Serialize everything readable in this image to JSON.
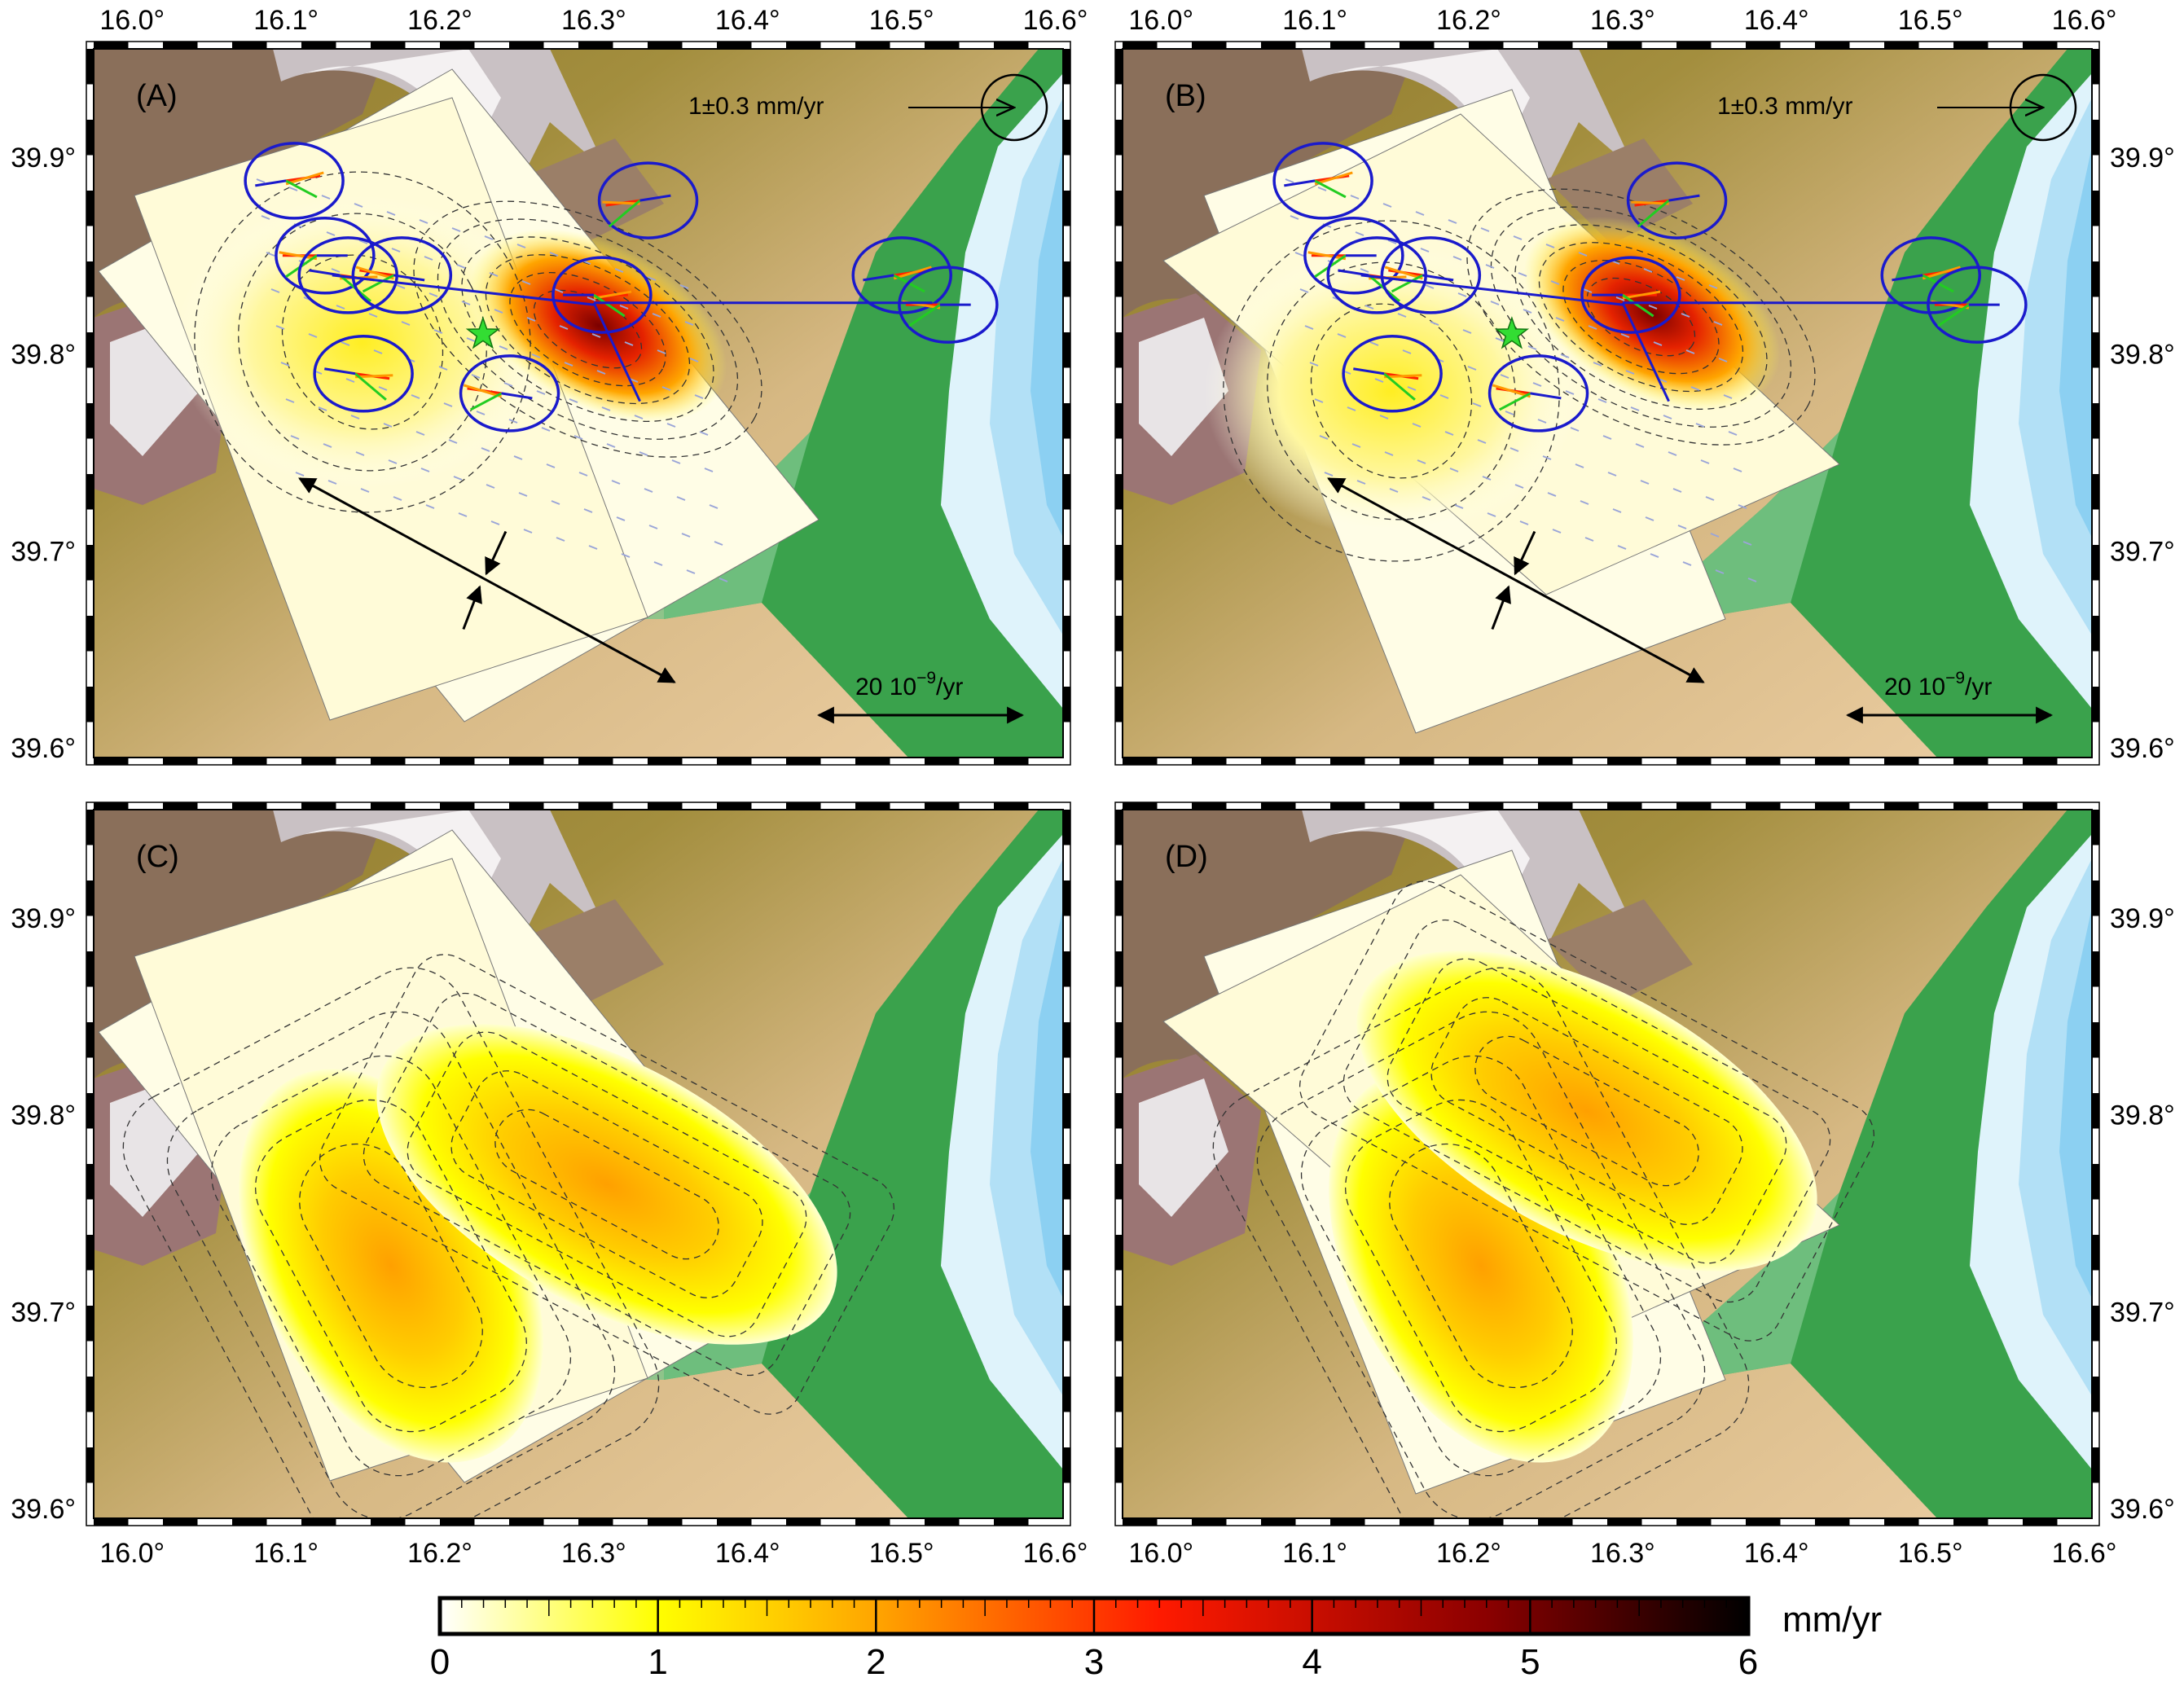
{
  "figure": {
    "panels": [
      {
        "id": "A",
        "label": "(A)",
        "mode": "vectors",
        "orientation": "N-S"
      },
      {
        "id": "B",
        "label": "(B)",
        "mode": "vectors",
        "orientation": "E-W"
      },
      {
        "id": "C",
        "label": "(C)",
        "mode": "slip-only",
        "orientation": "N-S"
      },
      {
        "id": "D",
        "label": "(D)",
        "mode": "slip-only",
        "orientation": "E-W"
      }
    ],
    "lon_ticks": [
      "16.0°",
      "16.1°",
      "16.2°",
      "16.3°",
      "16.4°",
      "16.5°",
      "16.6°"
    ],
    "lat_ticks": [
      "39.9°",
      "39.8°",
      "39.7°",
      "39.6°"
    ],
    "lon_range": [
      15.975,
      16.605
    ],
    "lat_range": [
      39.595,
      39.955
    ],
    "velocity_scale_label": "1±0.3 mm/yr",
    "strain_scale_label_prefix": "20 10",
    "strain_scale_label_exp": "−9",
    "strain_scale_label_suffix": "/yr",
    "colorbar": {
      "unit": "mm/yr",
      "ticks": [
        "0",
        "1",
        "2",
        "3",
        "4",
        "5",
        "6"
      ],
      "range": [
        0,
        6
      ],
      "colors": [
        "#ffffff",
        "#ffff00",
        "#ffa500",
        "#ff0000",
        "#8b0000",
        "#000000"
      ]
    },
    "epicenter": {
      "lon": 16.228,
      "lat": 39.81
    },
    "gps_sites": [
      {
        "lon": 16.1,
        "lat": 39.888
      },
      {
        "lon": 16.12,
        "lat": 39.85
      },
      {
        "lon": 16.135,
        "lat": 39.84
      },
      {
        "lon": 16.17,
        "lat": 39.84
      },
      {
        "lon": 16.3,
        "lat": 39.83
      },
      {
        "lon": 16.33,
        "lat": 39.878
      },
      {
        "lon": 16.495,
        "lat": 39.84
      },
      {
        "lon": 16.525,
        "lat": 39.825
      },
      {
        "lon": 16.145,
        "lat": 39.79
      },
      {
        "lon": 16.24,
        "lat": 39.78
      }
    ],
    "colors": {
      "observed_vector": "#1a1acc",
      "model_vector_red": "#ff2200",
      "model_vector_orange": "#ff9900",
      "model_vector_green": "#22cc22",
      "ellipse": "#1a1acc",
      "star": "#33dd33"
    }
  }
}
